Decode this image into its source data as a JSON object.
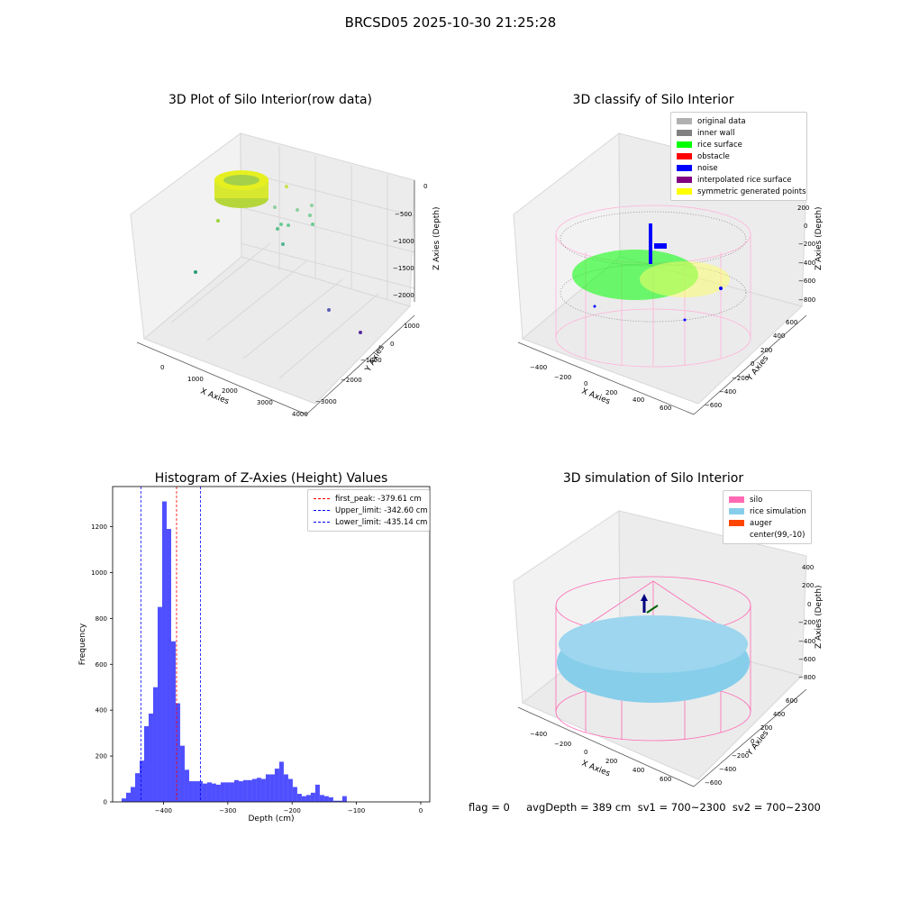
{
  "suptitle": "BRCSD05 2025-10-30 21:25:28",
  "panel1": {
    "title": "3D Plot of Silo Interior(row data)",
    "xlabel": "X Axies",
    "ylabel": "Y Axies",
    "zlabel": "Z Axies (Depth)",
    "xticks": [
      "0",
      "1000",
      "2000",
      "3000",
      "4000"
    ],
    "yticks": [
      "1000",
      "0",
      "−1000",
      "−2000",
      "−3000"
    ],
    "zticks": [
      "0",
      "−500",
      "−1000",
      "−1500",
      "−2000"
    ]
  },
  "panel2": {
    "title": "3D classify of Silo Interior",
    "xlabel": "X Axies",
    "ylabel": "Y Axies",
    "zlabel": "Z Axies (Depth)",
    "xticks": [
      "−400",
      "−200",
      "0",
      "200",
      "400",
      "600"
    ],
    "yticks": [
      "600",
      "400",
      "200",
      "0",
      "−200",
      "−400",
      "−600"
    ],
    "zticks": [
      "200",
      "0",
      "−200",
      "−400",
      "−600",
      "−800"
    ],
    "legend": [
      {
        "label": "original data",
        "color": "#b0b0b0"
      },
      {
        "label": "inner wall",
        "color": "#808080"
      },
      {
        "label": "rice surface",
        "color": "#00ff00"
      },
      {
        "label": "obstacle",
        "color": "#ff0000"
      },
      {
        "label": "noise",
        "color": "#0000ff"
      },
      {
        "label": "interpolated rice surface",
        "color": "#800080"
      },
      {
        "label": "symmetric generated points",
        "color": "#ffff00"
      }
    ]
  },
  "panel4": {
    "title": "3D simulation of Silo Interior",
    "xlabel": "X Axies",
    "ylabel": "Y Axies",
    "zlabel": "Z Axies (Depth)",
    "xticks": [
      "−400",
      "−200",
      "0",
      "200",
      "400",
      "600"
    ],
    "yticks": [
      "600",
      "400",
      "200",
      "0",
      "−200",
      "−400",
      "−600"
    ],
    "zticks": [
      "400",
      "200",
      "0",
      "−200",
      "−400",
      "−600",
      "−800"
    ],
    "legend": [
      {
        "label": "silo",
        "color": "#ff69b4"
      },
      {
        "label": "rice simulation",
        "color": "#87ceeb"
      },
      {
        "label": "auger",
        "color": "#ff4500"
      },
      {
        "label": "center(99,-10)",
        "color": "#ffffff"
      }
    ]
  },
  "chart_data": {
    "type": "bar",
    "title": "Histogram of Z-Axies (Height) Values",
    "xlabel": "Depth (cm)",
    "ylabel": "Frequency",
    "xlim": [
      -479,
      14
    ],
    "ylim": [
      0,
      1375
    ],
    "xticks": [
      -400,
      -300,
      -200,
      -100,
      0
    ],
    "yticks": [
      0,
      200,
      400,
      600,
      800,
      1000,
      1200
    ],
    "bin_start": -465,
    "bin_width": 7,
    "values": [
      15,
      40,
      65,
      125,
      180,
      330,
      385,
      500,
      850,
      1310,
      1190,
      700,
      430,
      245,
      140,
      90,
      90,
      90,
      80,
      85,
      80,
      75,
      85,
      85,
      85,
      95,
      90,
      95,
      95,
      100,
      105,
      100,
      120,
      120,
      145,
      175,
      120,
      100,
      65,
      35,
      25,
      30,
      40,
      75,
      30,
      25,
      20,
      5,
      5,
      25
    ],
    "vlines": [
      {
        "label": "first_peak: -379.61 cm",
        "x": -379.61,
        "color": "#ff0000"
      },
      {
        "label": "Upper_limit: -342.60 cm",
        "x": -342.6,
        "color": "#0000ff"
      },
      {
        "label": "Lower_limit: -435.14 cm",
        "x": -435.14,
        "color": "#0000ff"
      }
    ],
    "bar_color": "#4b4bff"
  },
  "footer": "flag = 0     avgDepth = 389 cm  sv1 = 700~2300  sv2 = 700~2300"
}
